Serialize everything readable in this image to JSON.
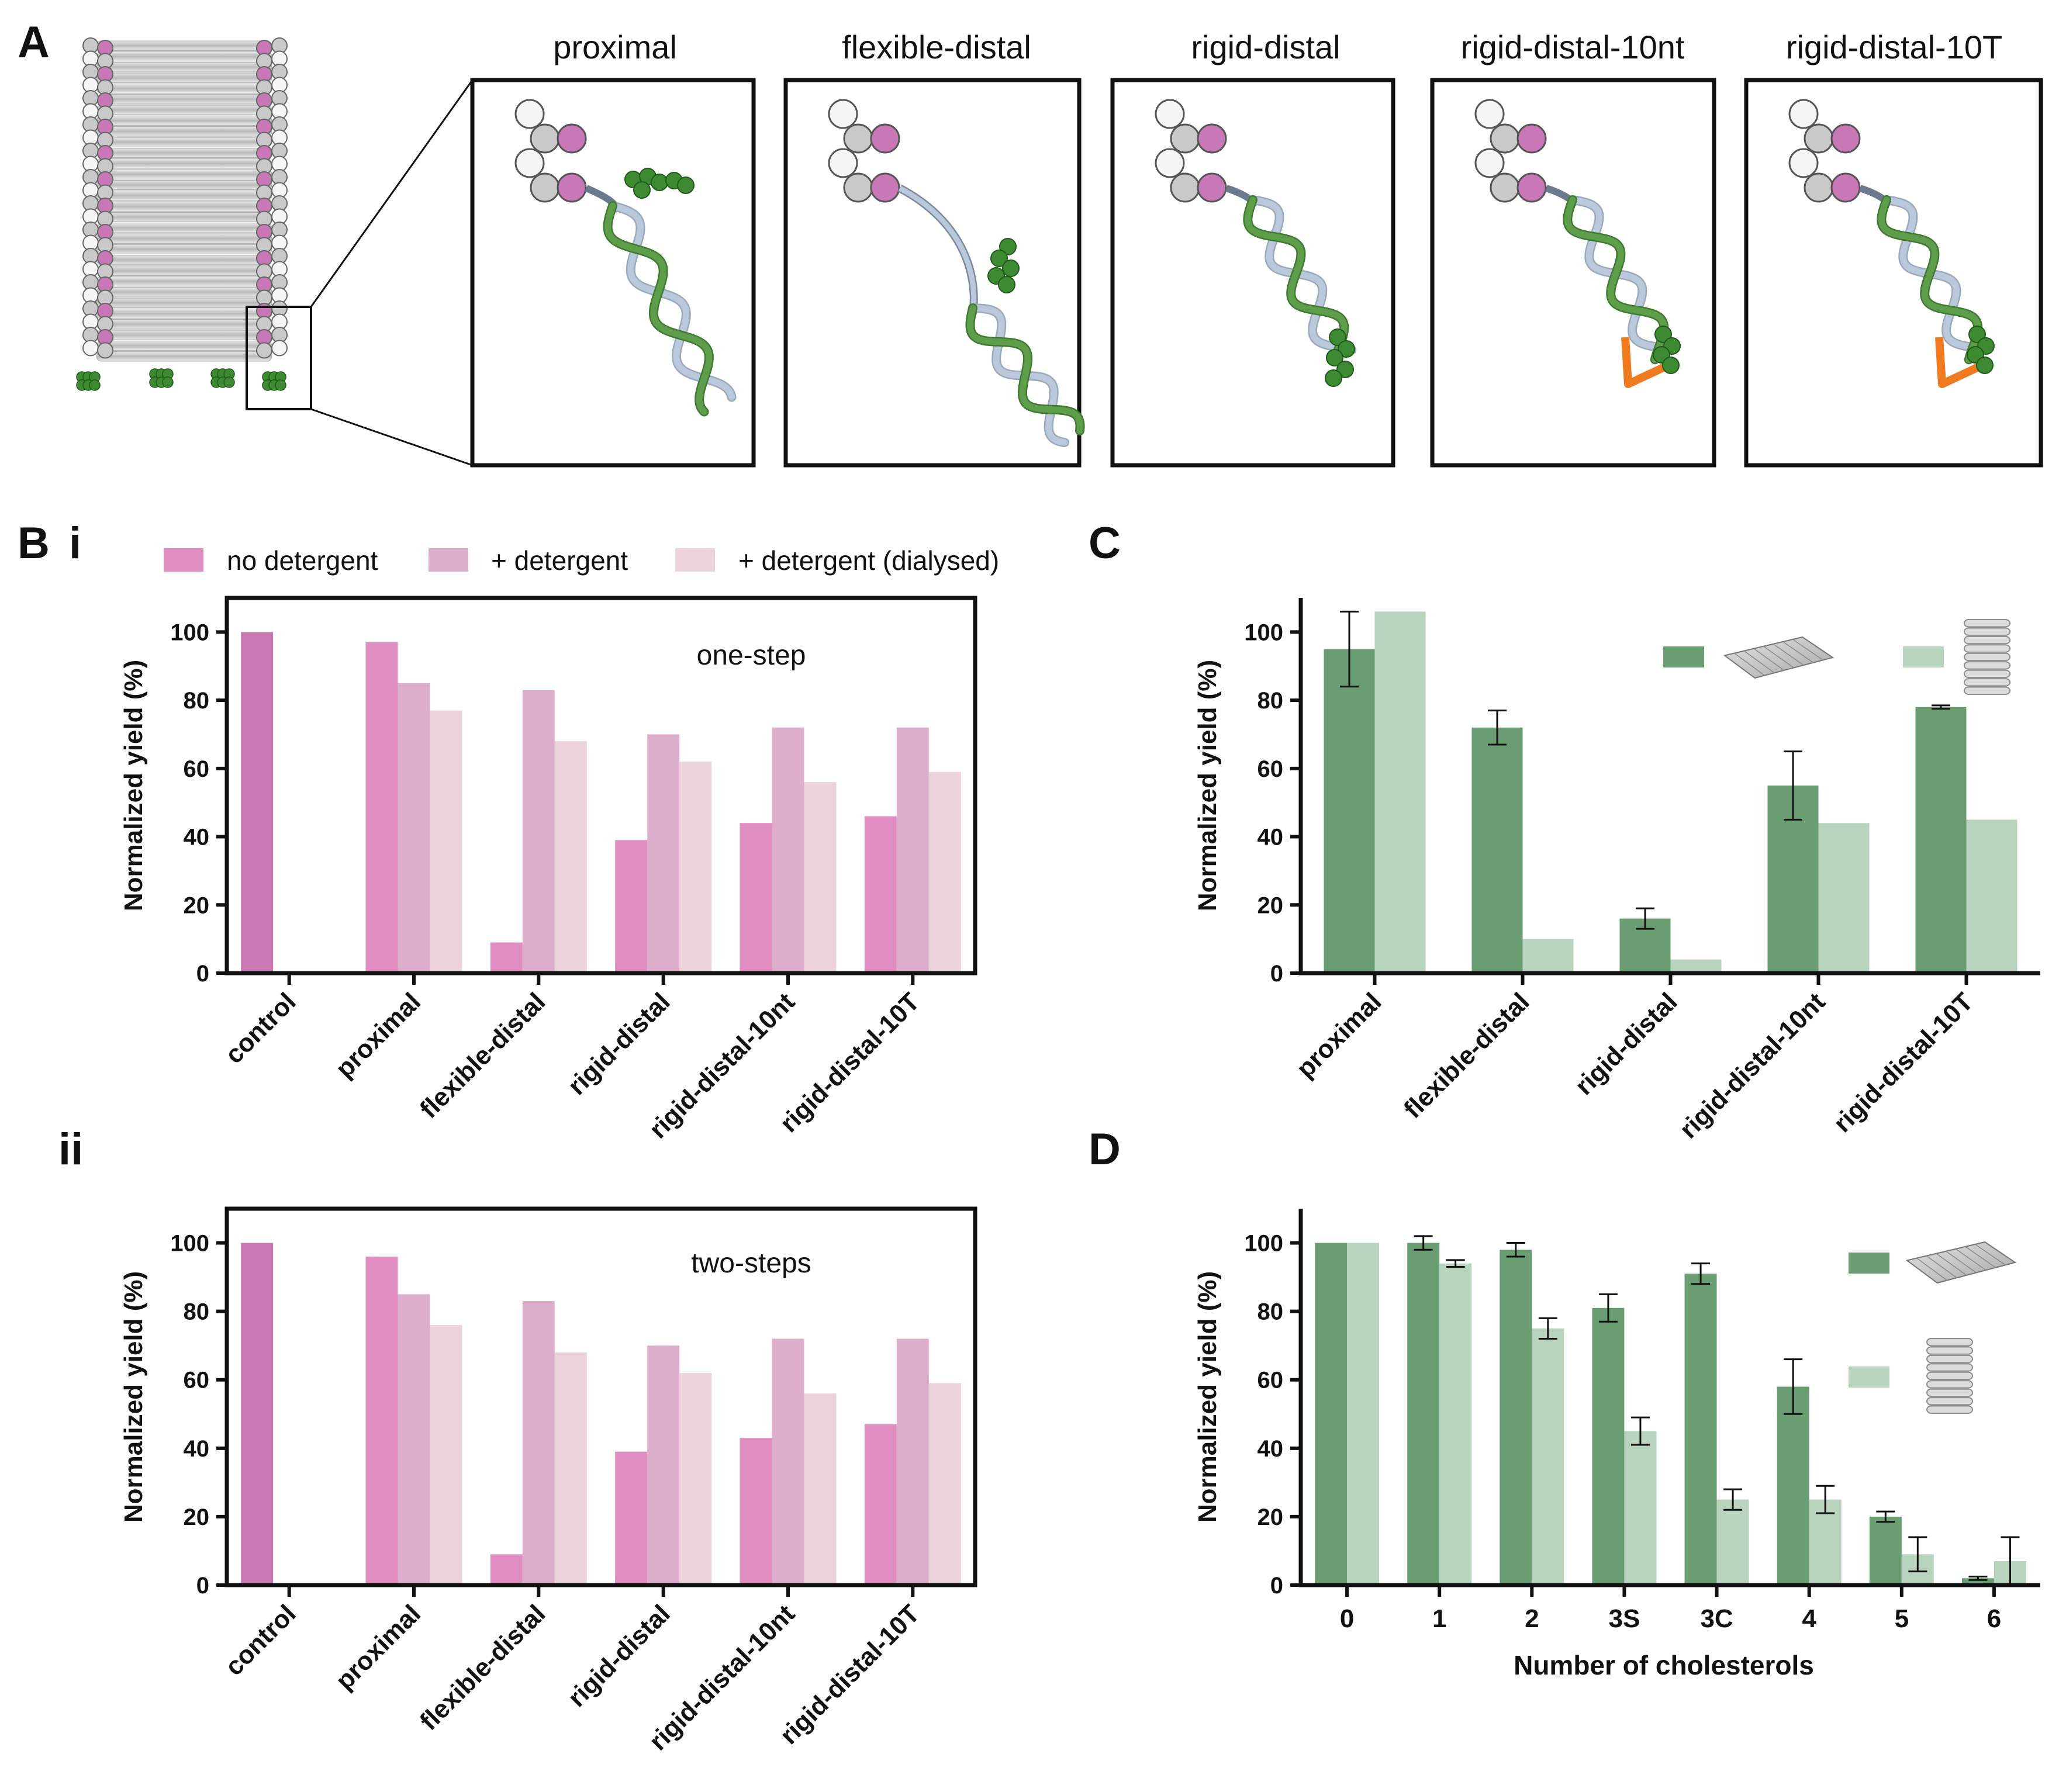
{
  "panel_labels": {
    "A": "A",
    "B": "B",
    "Bi": "i",
    "Bii": "ii",
    "C": "C",
    "D": "D"
  },
  "colors": {
    "pink_nodet": "#E08DC2",
    "pink_det": "#DCAECB",
    "pink_dial": "#EBD3D9",
    "pink_control": "#C97AB4",
    "green_dark": "#6A9E72",
    "green_light": "#B8D3BE",
    "dna_green": "#5E9E4A",
    "dna_blue": "#B9C8DA",
    "bead_green": "#3E8A33",
    "linker_orange": "#F07A20",
    "chol_pink": "#C878B6",
    "chol_white": "#F5F5F5",
    "chol_grey": "#C9C9C9"
  },
  "diagram": {
    "titles": [
      "proximal",
      "flexible-distal",
      "rigid-distal",
      "rigid-distal-10nt",
      "rigid-distal-10T"
    ],
    "icons": [
      "origami-barrel-icon",
      "zoom-box-icon",
      "dna-helix-icon",
      "cholesterol-bead-icon"
    ]
  },
  "legend_B": [
    "no detergent",
    "+ detergent",
    "+ detergent (dialysed)"
  ],
  "chart_data": [
    {
      "id": "Bi",
      "type": "bar",
      "annotation": "one-step",
      "ylabel": "Normalized yield (%)",
      "ylim": [
        0,
        110
      ],
      "yticks": [
        0,
        20,
        40,
        60,
        80,
        100
      ],
      "categories": [
        "control",
        "proximal",
        "flexible-distal",
        "rigid-distal",
        "rigid-distal-10nt",
        "rigid-distal-10T"
      ],
      "series": [
        {
          "name": "no detergent",
          "values": [
            100,
            97,
            9,
            39,
            44,
            46
          ]
        },
        {
          "name": "+ detergent",
          "values": [
            null,
            85,
            83,
            70,
            72,
            72
          ]
        },
        {
          "name": "+ detergent (dialysed)",
          "values": [
            null,
            77,
            68,
            62,
            56,
            59
          ]
        }
      ]
    },
    {
      "id": "Bii",
      "type": "bar",
      "annotation": "two-steps",
      "ylabel": "Normalized yield (%)",
      "ylim": [
        0,
        110
      ],
      "yticks": [
        0,
        20,
        40,
        60,
        80,
        100
      ],
      "categories": [
        "control",
        "proximal",
        "flexible-distal",
        "rigid-distal",
        "rigid-distal-10nt",
        "rigid-distal-10T"
      ],
      "series": [
        {
          "name": "no detergent",
          "values": [
            100,
            96,
            9,
            39,
            43,
            47
          ]
        },
        {
          "name": "+ detergent",
          "values": [
            null,
            85,
            83,
            70,
            72,
            72
          ]
        },
        {
          "name": "+ detergent (dialysed)",
          "values": [
            null,
            76,
            68,
            62,
            56,
            59
          ]
        }
      ]
    },
    {
      "id": "C",
      "type": "bar",
      "ylabel": "Normalized yield (%)",
      "ylim": [
        0,
        110
      ],
      "yticks": [
        0,
        20,
        40,
        60,
        80,
        100
      ],
      "categories": [
        "proximal",
        "flexible-distal",
        "rigid-distal",
        "rigid-distal-10nt",
        "rigid-distal-10T"
      ],
      "series": [
        {
          "name": "sheet",
          "values": [
            95,
            72,
            16,
            55,
            78
          ],
          "errors": [
            11,
            5,
            3,
            10,
            0.5
          ]
        },
        {
          "name": "barrel",
          "values": [
            106,
            10,
            4,
            44,
            45
          ]
        }
      ]
    },
    {
      "id": "D",
      "type": "bar",
      "ylabel": "Normalized yield (%)",
      "xlabel": "Number of cholesterols",
      "ylim": [
        0,
        110
      ],
      "yticks": [
        0,
        20,
        40,
        60,
        80,
        100
      ],
      "categories": [
        "0",
        "1",
        "2",
        "3S",
        "3C",
        "4",
        "5",
        "6"
      ],
      "series": [
        {
          "name": "sheet",
          "values": [
            100,
            100,
            98,
            81,
            91,
            58,
            20,
            2
          ],
          "errors": [
            0,
            2,
            2,
            4,
            3,
            8,
            1.5,
            0.5
          ]
        },
        {
          "name": "barrel",
          "values": [
            100,
            94,
            75,
            45,
            25,
            25,
            9,
            7
          ],
          "errors": [
            0,
            1,
            3,
            4,
            3,
            4,
            5,
            7
          ]
        }
      ]
    }
  ]
}
